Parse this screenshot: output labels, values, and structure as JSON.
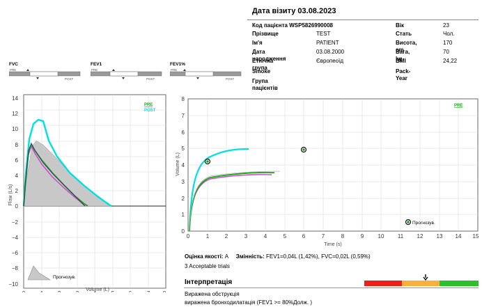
{
  "visit": {
    "title": "Дата візиту 03.08.2023"
  },
  "patient_left": [
    {
      "label": "Код пацієнта",
      "value": "WSP5826990008"
    },
    {
      "label": "Прізвище",
      "value": "TEST"
    },
    {
      "label": "Ім'я",
      "value": "PATIENT"
    },
    {
      "label": "Дата народження",
      "value": "03.08.2000"
    },
    {
      "label": "Етнічна група",
      "value": "Європеоїд"
    },
    {
      "label": "Smoke",
      "value": ""
    },
    {
      "label": "Група пацієнтів",
      "value": ""
    }
  ],
  "patient_right": [
    {
      "label": "Вік",
      "value": "23"
    },
    {
      "label": "Стать",
      "value": "Чол."
    },
    {
      "label": "Висота, cm",
      "value": "170"
    },
    {
      "label": "Вага, kg",
      "value": "70"
    },
    {
      "label": "BMI",
      "value": "24,22"
    },
    {
      "label": "Pack-Year",
      "value": ""
    }
  ],
  "mini_bars": [
    {
      "label": "FVC",
      "pre": "PRE",
      "post": "POST"
    },
    {
      "label": "FEV1",
      "pre": "PRE",
      "post": "POST"
    },
    {
      "label": "FEV1%",
      "pre": "PRE",
      "post": "POST"
    }
  ],
  "flow_chart": {
    "ylabel": "Flow (L/s)",
    "xlabel": "Volume (L)",
    "legend_pre": "PRE",
    "legend_post": "POST",
    "predicted_label": "Прогнозув.",
    "y_ticks": [
      "14",
      "12",
      "10",
      "8",
      "6",
      "4",
      "2",
      "0",
      "−2",
      "−4",
      "−6",
      "−8",
      "−10"
    ],
    "x_ticks": [
      "0",
      "1",
      "2",
      "3",
      "4",
      "5",
      "6",
      "7",
      "8"
    ]
  },
  "vt_chart": {
    "ylabel": "Volume (L)",
    "xlabel": "Time (s)",
    "legend_pre": "PRE",
    "predicted_label": "Прогнозув.",
    "y_ticks": [
      "0",
      "1",
      "2",
      "3",
      "4",
      "5",
      "6",
      "7",
      "8"
    ],
    "x_ticks": [
      "0",
      "1",
      "2",
      "3",
      "4",
      "5",
      "6",
      "7",
      "8",
      "9",
      "10",
      "11",
      "12",
      "13",
      "14",
      "15"
    ]
  },
  "quality": {
    "label": "Оцінка якості:",
    "grade": "A",
    "variability_label": "Змінність:",
    "variability_value": "FEV1=0,04L (1,42%), FVC=0,02L (0,59%)"
  },
  "trials": "3 Acceptable trials",
  "interpretation": {
    "title": "Інтерпретація",
    "line1": "Виражена обструкція",
    "line2": "виражена бронходилатація (FEV1 >= 80%Долж. )",
    "colors": {
      "bad": "#e8221b",
      "mid": "#f7b13a",
      "good": "#2cc12c"
    }
  },
  "colors": {
    "pre": "#00e0e0",
    "post": "#14a814",
    "trial": "#cc44cc",
    "predicted": "#c8c8c8"
  }
}
